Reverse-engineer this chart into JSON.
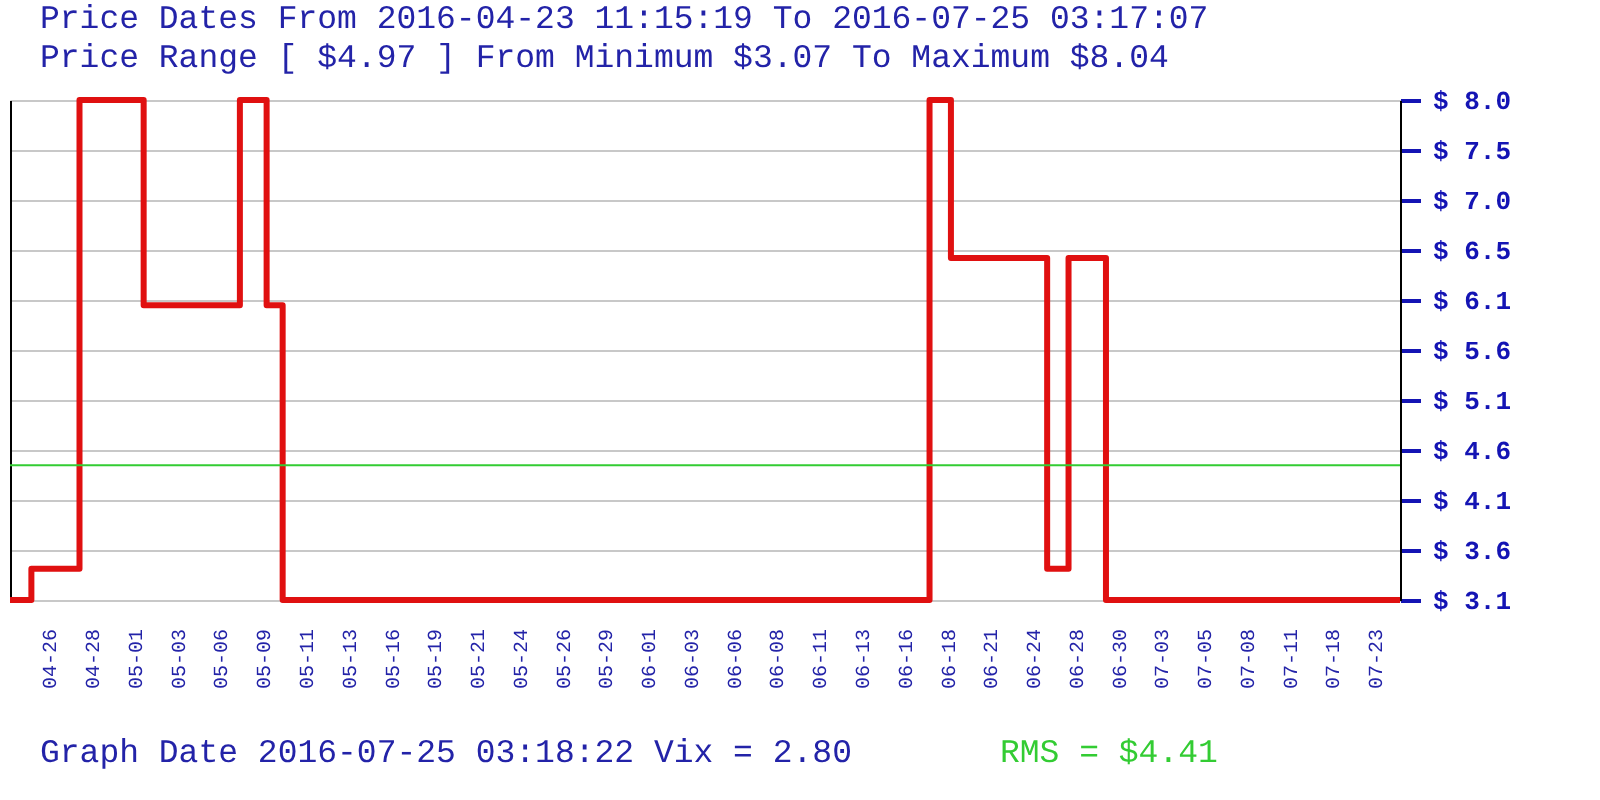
{
  "chart_data": {
    "type": "step",
    "title": "Price Dates From 2016-04-23 11:15:19 To 2016-07-25 03:17:07",
    "subtitle": "Price Range [ $4.97 ] From Minimum $3.07 To Maximum $8.04",
    "annotations": [
      "Graph Date 2016-07-25 03:18:22 Vix = 2.80"
    ],
    "categories": [
      null,
      null,
      null,
      null,
      null,
      null,
      null,
      null,
      "04-26",
      null,
      null,
      null,
      null,
      null,
      null,
      null,
      "04-28",
      null,
      null,
      null,
      null,
      null,
      null,
      null,
      "05-01",
      null,
      null,
      null,
      null,
      null,
      null,
      null,
      "05-03",
      null,
      null,
      null,
      null,
      null,
      null,
      null,
      "05-06",
      null,
      null,
      null,
      null,
      null,
      null,
      null,
      "05-09",
      null,
      null,
      null,
      null,
      null,
      null,
      null,
      "05-11",
      null,
      null,
      null,
      null,
      null,
      null,
      null,
      "05-13",
      null,
      null,
      null,
      null,
      null,
      null,
      null,
      "05-16",
      null,
      null,
      null,
      null,
      null,
      null,
      null,
      "05-19",
      null,
      null,
      null,
      null,
      null,
      null,
      null,
      "05-21",
      null,
      null,
      null,
      null,
      null,
      null,
      null,
      "05-24",
      null,
      null,
      null,
      null,
      null,
      null,
      null,
      "05-26",
      null,
      null,
      null,
      null,
      null,
      null,
      null,
      "05-29",
      null,
      null,
      null,
      null,
      null,
      null,
      null,
      "06-01",
      null,
      null,
      null,
      null,
      null,
      null,
      null,
      "06-03",
      null,
      null,
      null,
      null,
      null,
      null,
      null,
      "06-06",
      null,
      null,
      null,
      null,
      null,
      null,
      null,
      "06-08",
      null,
      null,
      null,
      null,
      null,
      null,
      null,
      "06-11",
      null,
      null,
      null,
      null,
      null,
      null,
      null,
      "06-13",
      null,
      null,
      null,
      null,
      null,
      null,
      null,
      "06-16",
      null,
      null,
      null,
      null,
      null,
      null,
      null,
      "06-18",
      null,
      null,
      null,
      null,
      null,
      null,
      null,
      "06-21",
      null,
      null,
      null,
      null,
      null,
      null,
      null,
      "06-24",
      null,
      null,
      null,
      null,
      null,
      null,
      null,
      "06-28",
      null,
      null,
      null,
      null,
      null,
      null,
      null,
      "06-30",
      null,
      null,
      null,
      null,
      null,
      null,
      null,
      "07-03",
      null,
      null,
      null,
      null,
      null,
      null,
      null,
      "07-05",
      null,
      null,
      null,
      null,
      null,
      null,
      null,
      "07-08",
      null,
      null,
      null,
      null,
      null,
      null,
      null,
      "07-11",
      null,
      null,
      null,
      null,
      null,
      null,
      null,
      "07-18",
      null,
      null,
      null,
      null,
      null,
      null,
      null,
      "07-23",
      null,
      null,
      null,
      null
    ],
    "series": [
      {
        "color": "#e01010",
        "values": [
          3.07,
          3.07,
          3.07,
          3.07,
          3.38,
          3.38,
          3.38,
          3.38,
          3.38,
          3.38,
          3.38,
          3.38,
          3.38,
          8.04,
          8.04,
          8.04,
          8.04,
          8.04,
          8.04,
          8.04,
          8.04,
          8.04,
          8.04,
          8.04,
          8.04,
          6.0,
          6.0,
          6.0,
          6.0,
          6.0,
          6.0,
          6.0,
          6.0,
          6.0,
          6.0,
          6.0,
          6.0,
          6.0,
          6.0,
          6.0,
          6.0,
          6.0,
          6.0,
          8.04,
          8.04,
          8.04,
          8.04,
          8.04,
          6.0,
          6.0,
          6.0,
          3.07,
          3.07,
          3.07,
          3.07,
          3.07,
          3.07,
          3.07,
          3.07,
          3.07,
          3.07,
          3.07,
          3.07,
          3.07,
          3.07,
          3.07,
          3.07,
          3.07,
          3.07,
          3.07,
          3.07,
          3.07,
          3.07,
          3.07,
          3.07,
          3.07,
          3.07,
          3.07,
          3.07,
          3.07,
          3.07,
          3.07,
          3.07,
          3.07,
          3.07,
          3.07,
          3.07,
          3.07,
          3.07,
          3.07,
          3.07,
          3.07,
          3.07,
          3.07,
          3.07,
          3.07,
          3.07,
          3.07,
          3.07,
          3.07,
          3.07,
          3.07,
          3.07,
          3.07,
          3.07,
          3.07,
          3.07,
          3.07,
          3.07,
          3.07,
          3.07,
          3.07,
          3.07,
          3.07,
          3.07,
          3.07,
          3.07,
          3.07,
          3.07,
          3.07,
          3.07,
          3.07,
          3.07,
          3.07,
          3.07,
          3.07,
          3.07,
          3.07,
          3.07,
          3.07,
          3.07,
          3.07,
          3.07,
          3.07,
          3.07,
          3.07,
          3.07,
          3.07,
          3.07,
          3.07,
          3.07,
          3.07,
          3.07,
          3.07,
          3.07,
          3.07,
          3.07,
          3.07,
          3.07,
          3.07,
          3.07,
          3.07,
          3.07,
          3.07,
          3.07,
          3.07,
          3.07,
          3.07,
          3.07,
          3.07,
          3.07,
          3.07,
          3.07,
          3.07,
          3.07,
          3.07,
          3.07,
          3.07,
          3.07,
          3.07,
          3.07,
          3.07,
          8.04,
          8.04,
          8.04,
          8.04,
          6.47,
          6.47,
          6.47,
          6.47,
          6.47,
          6.47,
          6.47,
          6.47,
          6.47,
          6.47,
          6.47,
          6.47,
          6.47,
          6.47,
          6.47,
          6.47,
          6.47,
          6.47,
          3.38,
          3.38,
          3.38,
          3.38,
          6.47,
          6.47,
          6.47,
          6.47,
          6.47,
          6.47,
          6.47,
          3.07,
          3.07,
          3.07,
          3.07,
          3.07,
          3.07,
          3.07,
          3.07,
          3.07,
          3.07,
          3.07,
          3.07,
          3.07,
          3.07,
          3.07,
          3.07,
          3.07,
          3.07,
          3.07,
          3.07,
          3.07,
          3.07,
          3.07,
          3.07,
          3.07,
          3.07,
          3.07,
          3.07,
          3.07,
          3.07,
          3.07,
          3.07,
          3.07,
          3.07,
          3.07,
          3.07,
          3.07,
          3.07,
          3.07,
          3.07,
          3.07,
          3.07,
          3.07,
          3.07,
          3.07,
          3.07,
          3.07,
          3.07,
          3.07,
          3.07,
          3.07,
          3.07,
          3.07,
          3.07,
          3.07,
          3.07
        ]
      }
    ],
    "ylim": [
      3.07,
      8.04
    ],
    "yticks": [
      {
        "value": 3.07,
        "label": "$ 3.1"
      },
      {
        "value": 3.567,
        "label": "$ 3.6"
      },
      {
        "value": 4.064,
        "label": "$ 4.1"
      },
      {
        "value": 4.561,
        "label": "$ 4.6"
      },
      {
        "value": 5.058,
        "label": "$ 5.1"
      },
      {
        "value": 5.555,
        "label": "$ 5.6"
      },
      {
        "value": 6.052,
        "label": "$ 6.1"
      },
      {
        "value": 6.549,
        "label": "$ 6.5"
      },
      {
        "value": 7.046,
        "label": "$ 7.0"
      },
      {
        "value": 7.543,
        "label": "$ 7.5"
      },
      {
        "value": 8.04,
        "label": "$ 8.0"
      }
    ],
    "grid": "y",
    "ref_lines": [
      {
        "axis": "y",
        "value": 4.41,
        "label": "RMS = $4.41",
        "color": "#33cc33"
      }
    ]
  }
}
